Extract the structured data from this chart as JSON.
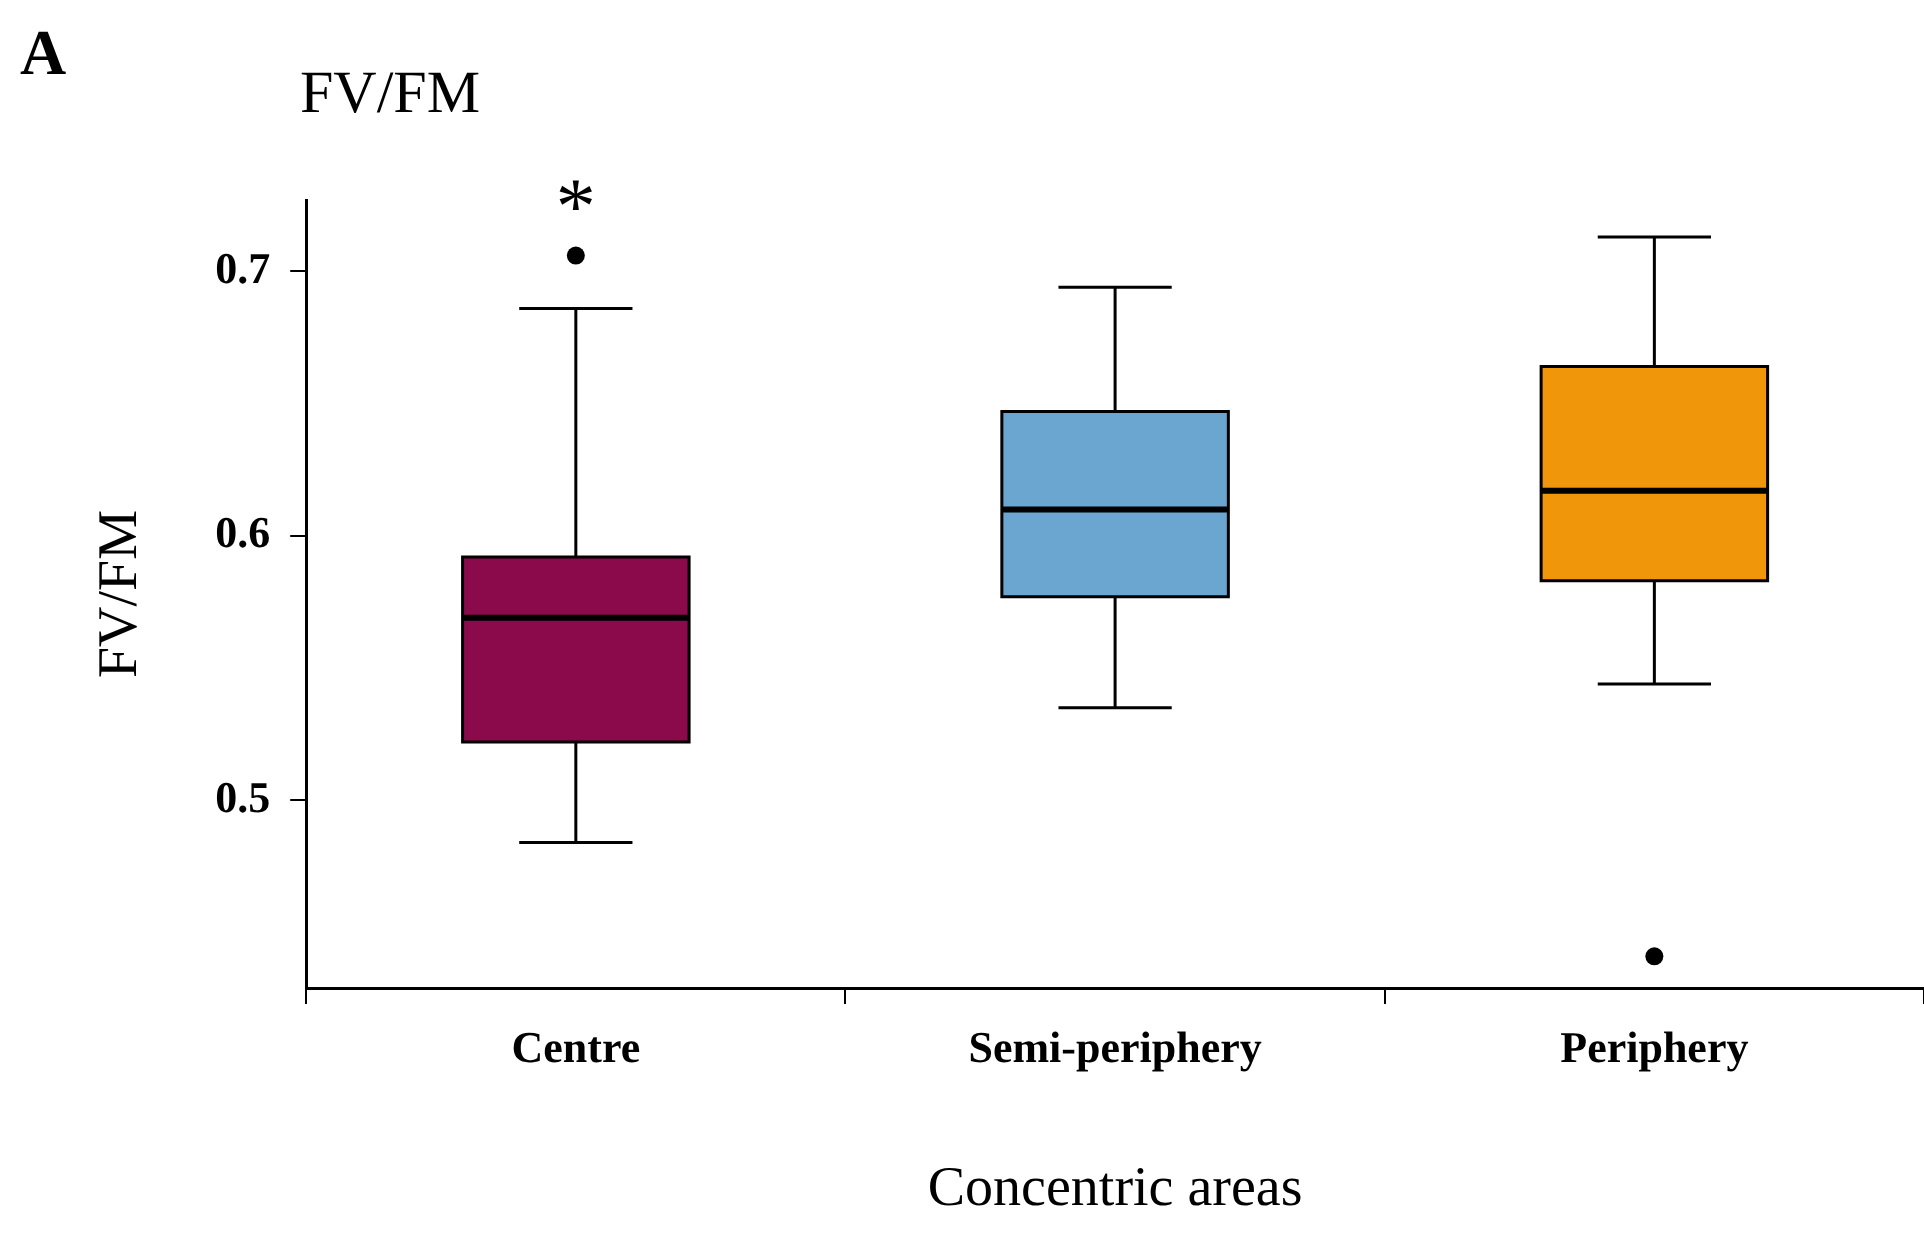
{
  "chart_data": {
    "type": "box",
    "title": "FV/FM",
    "xlabel": "Concentric areas",
    "ylabel": "FV/FM",
    "categories": [
      "Centre",
      "Semi-periphery",
      "Periphery"
    ],
    "colors": [
      "#8b0a4c",
      "#6aa6cf",
      "#f0960a"
    ],
    "boxes": [
      {
        "low": 0.484,
        "q1": 0.522,
        "median": 0.569,
        "q3": 0.592,
        "high": 0.686,
        "outliers": [
          0.706
        ]
      },
      {
        "low": 0.535,
        "q1": 0.577,
        "median": 0.61,
        "q3": 0.647,
        "high": 0.694
      },
      {
        "low": 0.544,
        "q1": 0.583,
        "median": 0.617,
        "q3": 0.664,
        "high": 0.713,
        "outliers": [
          0.441
        ]
      }
    ],
    "ylim": [
      0.429,
      0.727
    ],
    "yticks": [
      0.5,
      0.6,
      0.7
    ],
    "annotations": [
      "A",
      "*"
    ],
    "legend": false
  }
}
